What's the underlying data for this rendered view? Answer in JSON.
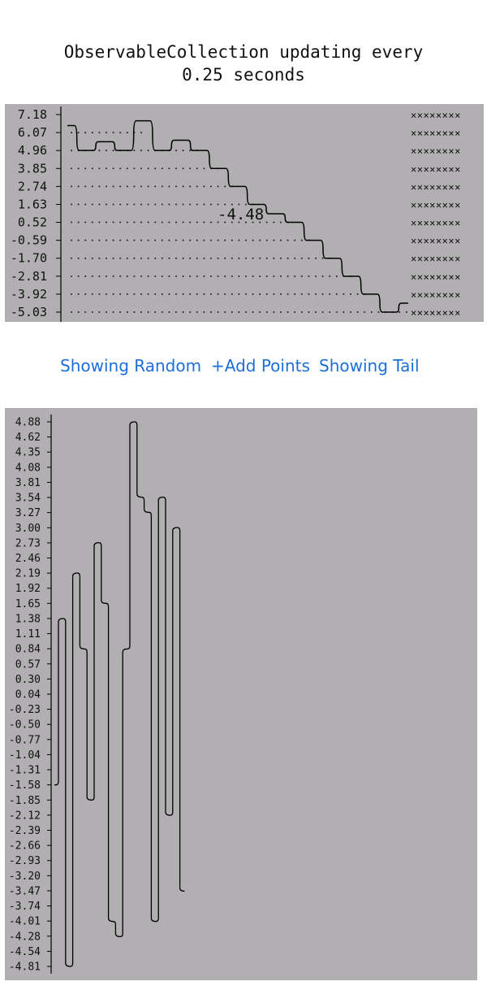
{
  "header": {
    "title": "ObservableCollection updating every\n0.25 seconds"
  },
  "controls": {
    "showing_random": "Showing Random",
    "add_points": "+Add Points",
    "showing_tail": "Showing Tail",
    "link_color": "#1a6fdc"
  },
  "colors": {
    "chart_background": "#b1afb1",
    "line": "#000000"
  },
  "chart_data": [
    {
      "type": "line",
      "name": "tail",
      "y_ticks": [
        "7.18",
        "6.07",
        "4.96",
        "3.85",
        "2.74",
        "1.63",
        "0.52",
        "-0.59",
        "-1.70",
        "-2.81",
        "-3.92",
        "-5.03"
      ],
      "ylim": [
        -5.03,
        7.18
      ],
      "highlight_label": "-4.48",
      "placeholder_marker": "××××××××",
      "values": [
        6.5,
        4.96,
        5.5,
        4.96,
        6.8,
        4.96,
        5.6,
        4.96,
        3.85,
        2.74,
        1.63,
        1.05,
        0.52,
        -0.59,
        -1.7,
        -2.81,
        -3.92,
        -5.03,
        -4.48
      ]
    },
    {
      "type": "line",
      "name": "random",
      "y_ticks": [
        "4.88",
        "4.62",
        "4.35",
        "4.08",
        "3.81",
        "3.54",
        "3.27",
        "3.00",
        "2.73",
        "2.46",
        "2.19",
        "1.92",
        "1.65",
        "1.38",
        "1.11",
        "0.84",
        "0.57",
        "0.30",
        "0.04",
        "-0.23",
        "-0.50",
        "-0.77",
        "-1.04",
        "-1.31",
        "-1.58",
        "-1.85",
        "-2.12",
        "-2.39",
        "-2.66",
        "-2.93",
        "-3.20",
        "-3.47",
        "-3.74",
        "-4.01",
        "-4.28",
        "-4.54",
        "-4.81"
      ],
      "ylim": [
        -4.81,
        4.88
      ],
      "values": [
        -1.58,
        1.38,
        -4.81,
        2.19,
        0.84,
        -1.85,
        2.73,
        1.65,
        -4.01,
        -4.28,
        0.84,
        4.88,
        3.54,
        3.27,
        -4.01,
        3.54,
        -2.12,
        3.0,
        -3.47
      ]
    }
  ]
}
